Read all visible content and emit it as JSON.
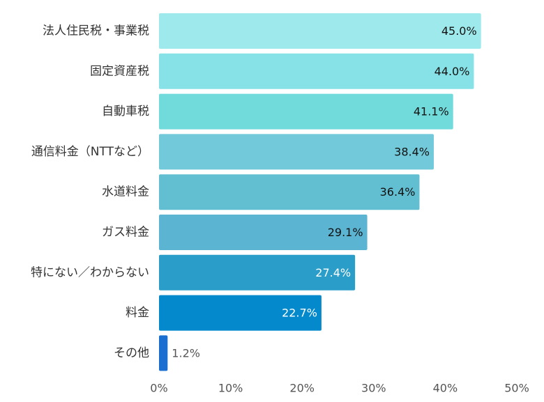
{
  "chart_data": {
    "type": "bar",
    "orientation": "horizontal",
    "categories": [
      "法人住民税・事業税",
      "固定資産税",
      "自動車税",
      "通信料金（NTTなど）",
      "水道料金",
      "ガス料金",
      "特にない／わからない",
      "料金",
      "その他"
    ],
    "values": [
      45.0,
      44.0,
      41.1,
      38.4,
      36.4,
      29.1,
      27.4,
      22.7,
      1.2
    ],
    "value_labels": [
      "45.0%",
      "44.0%",
      "41.1%",
      "38.4%",
      "36.4%",
      "29.1%",
      "27.4%",
      "22.7%",
      "1.2%"
    ],
    "colors": [
      "#9ee9eb",
      "#86e2e6",
      "#71dbdc",
      "#71c9da",
      "#62bfd2",
      "#5cb4d3",
      "#2a9dc8",
      "#0489cc",
      "#1a6fd0"
    ],
    "label_colors": [
      "#111111",
      "#111111",
      "#111111",
      "#111111",
      "#111111",
      "#111111",
      "#ffffff",
      "#ffffff",
      "#555555"
    ],
    "xlim": [
      0,
      50
    ],
    "xticks": [
      0,
      10,
      20,
      30,
      40,
      50
    ],
    "xtick_labels": [
      "0%",
      "10%",
      "20%",
      "30%",
      "40%",
      "50%"
    ],
    "title": "",
    "xlabel": "",
    "ylabel": "",
    "grid": false
  }
}
